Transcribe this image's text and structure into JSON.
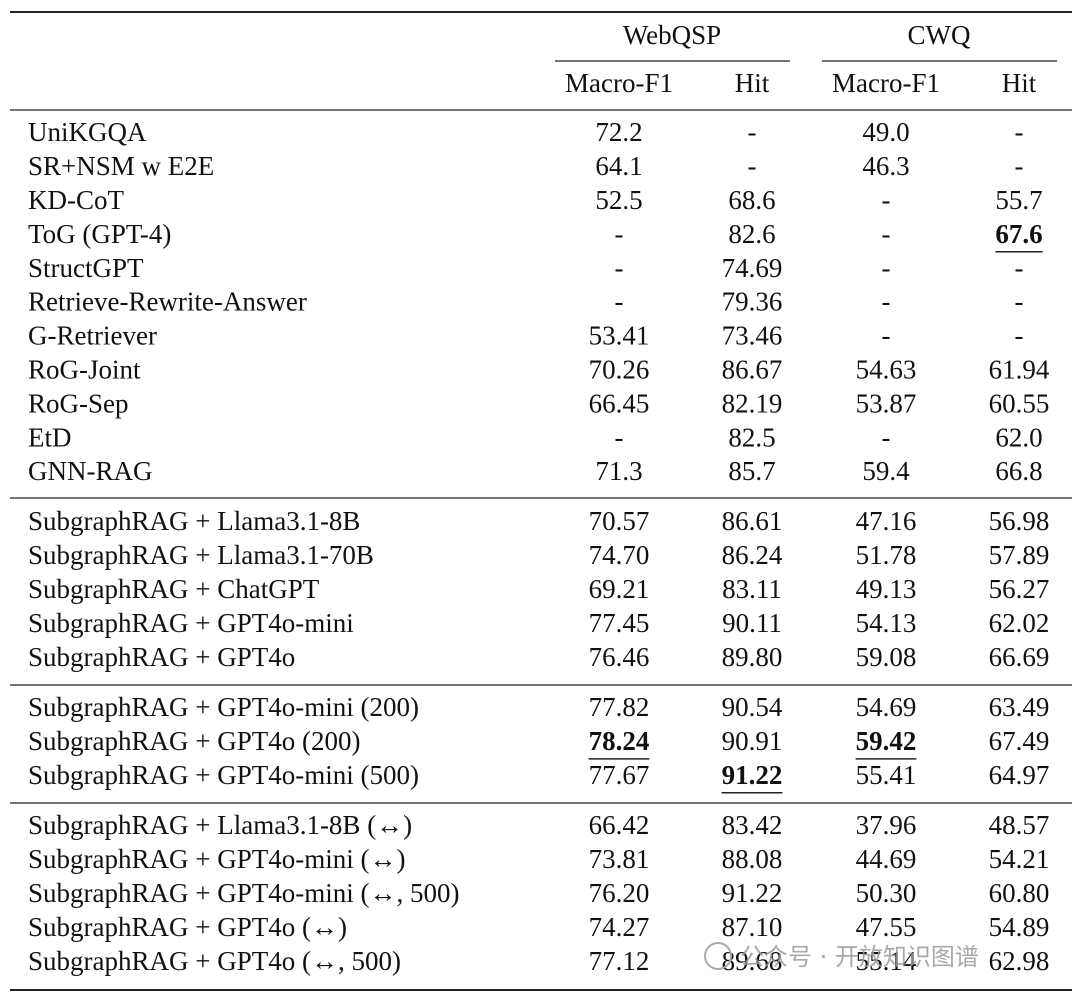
{
  "header": {
    "groups": [
      "WebQSP",
      "CWQ"
    ],
    "columns": [
      "Macro-F1",
      "Hit",
      "Macro-F1",
      "Hit"
    ]
  },
  "table": {
    "groups": [
      [
        [
          "UniKGQA",
          "72.2",
          "-",
          "49.0",
          "-"
        ],
        [
          "SR+NSM w E2E",
          "64.1",
          "-",
          "46.3",
          "-"
        ],
        [
          "KD-CoT",
          "52.5",
          "68.6",
          "-",
          "55.7"
        ],
        [
          "ToG (GPT-4)",
          "-",
          "82.6",
          "-",
          "67.6"
        ],
        [
          "StructGPT",
          "-",
          "74.69",
          "-",
          "-"
        ],
        [
          "Retrieve-Rewrite-Answer",
          "-",
          "79.36",
          "-",
          "-"
        ],
        [
          "G-Retriever",
          "53.41",
          "73.46",
          "-",
          "-"
        ],
        [
          "RoG-Joint",
          "70.26",
          "86.67",
          "54.63",
          "61.94"
        ],
        [
          "RoG-Sep",
          "66.45",
          "82.19",
          "53.87",
          "60.55"
        ],
        [
          "EtD",
          "-",
          "82.5",
          "-",
          "62.0"
        ],
        [
          "GNN-RAG",
          "71.3",
          "85.7",
          "59.4",
          "66.8"
        ]
      ],
      [
        [
          "SubgraphRAG + Llama3.1-8B",
          "70.57",
          "86.61",
          "47.16",
          "56.98"
        ],
        [
          "SubgraphRAG + Llama3.1-70B",
          "74.70",
          "86.24",
          "51.78",
          "57.89"
        ],
        [
          "SubgraphRAG + ChatGPT",
          "69.21",
          "83.11",
          "49.13",
          "56.27"
        ],
        [
          "SubgraphRAG + GPT4o-mini",
          "77.45",
          "90.11",
          "54.13",
          "62.02"
        ],
        [
          "SubgraphRAG + GPT4o",
          "76.46",
          "89.80",
          "59.08",
          "66.69"
        ]
      ],
      [
        [
          "SubgraphRAG + GPT4o-mini (200)",
          "77.82",
          "90.54",
          "54.69",
          "63.49"
        ],
        [
          "SubgraphRAG + GPT4o (200)",
          "78.24",
          "90.91",
          "59.42",
          "67.49"
        ],
        [
          "SubgraphRAG + GPT4o-mini (500)",
          "77.67",
          "91.22",
          "55.41",
          "64.97"
        ]
      ],
      [
        [
          "SubgraphRAG + Llama3.1-8B (↔)",
          "66.42",
          "83.42",
          "37.96",
          "48.57"
        ],
        [
          "SubgraphRAG + GPT4o-mini (↔)",
          "73.81",
          "88.08",
          "44.69",
          "54.21"
        ],
        [
          "SubgraphRAG + GPT4o-mini (↔, 500)",
          "76.20",
          "91.22",
          "50.30",
          "60.80"
        ],
        [
          "SubgraphRAG + GPT4o (↔)",
          "74.27",
          "87.10",
          "47.55",
          "54.89"
        ],
        [
          "SubgraphRAG + GPT4o (↔, 500)",
          "77.12",
          "89.68",
          "55.14",
          "62.98"
        ]
      ]
    ]
  },
  "emphasis": [
    [
      0,
      3,
      4
    ],
    [
      2,
      1,
      1
    ],
    [
      2,
      1,
      3
    ],
    [
      2,
      2,
      2
    ]
  ],
  "watermark": "公众号 · 开放知识图谱"
}
